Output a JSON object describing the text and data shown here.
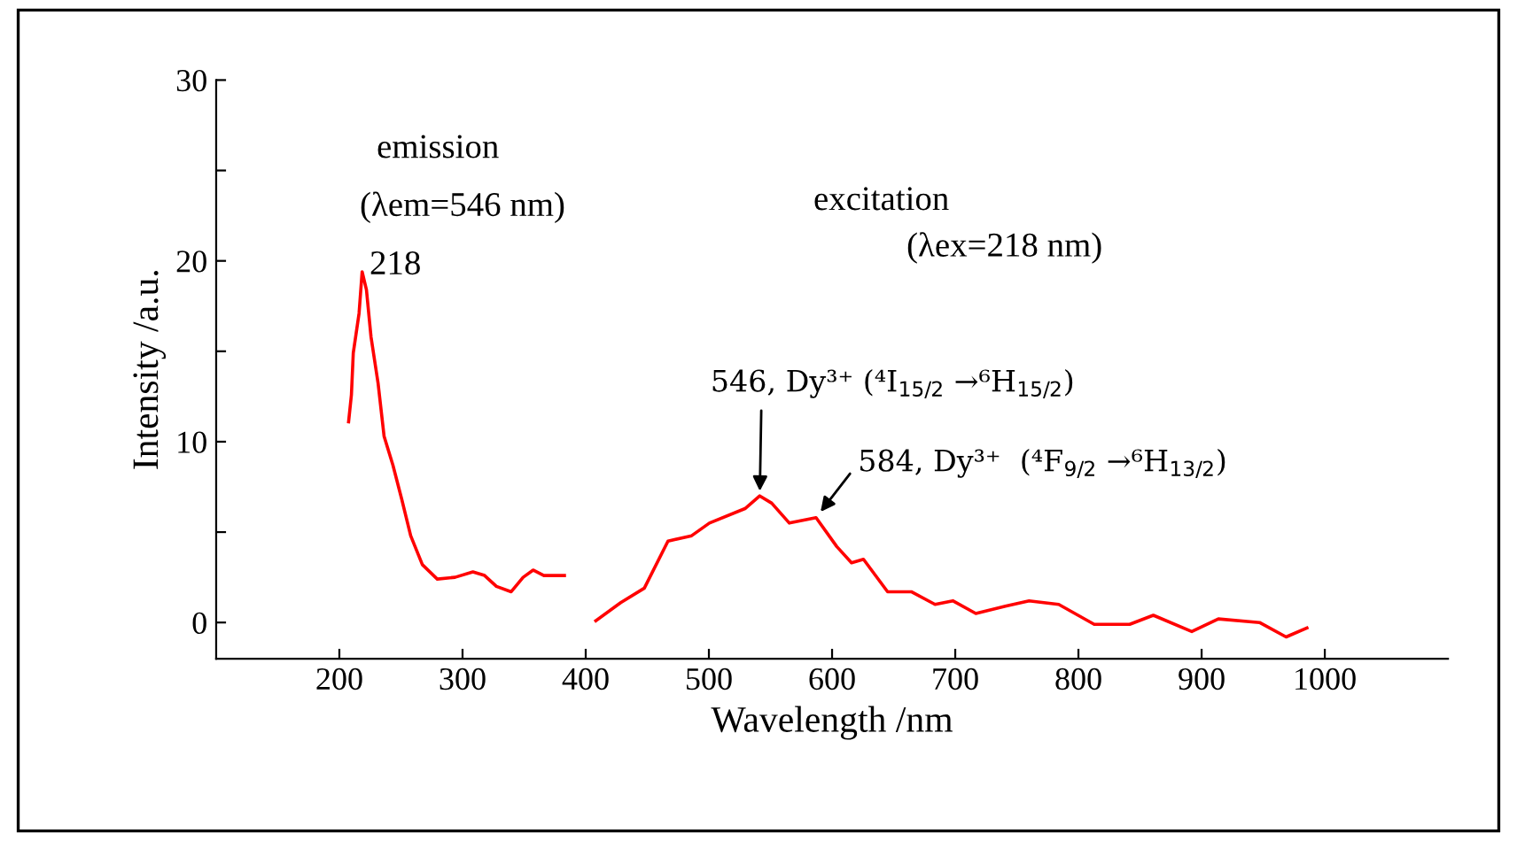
{
  "chart_data": {
    "type": "line",
    "xlabel": "Wavelength /nm",
    "ylabel": "Intensity /a.u.",
    "xlim": [
      100,
      1100
    ],
    "xticks": [
      200,
      300,
      400,
      500,
      600,
      700,
      800,
      900,
      1000
    ],
    "ylim": [
      -2,
      30
    ],
    "yticks": [
      0,
      {
        "value": 5,
        "label": null
      },
      10,
      {
        "value": 15,
        "label": null
      },
      20,
      {
        "value": 25,
        "label": null
      },
      30
    ],
    "grid": false,
    "legend": false,
    "marker": "none",
    "line_style": "solid",
    "series": [
      {
        "color": "#ff0000",
        "x": [
          207.5,
          209.8,
          211.3,
          216,
          218.5,
          222,
          225.7,
          231.5,
          236.3,
          243.5,
          250.7,
          257.9,
          267.4,
          279.5,
          293.9,
          308.4,
          317.9,
          327.5,
          339.5,
          349.2,
          357.3,
          366,
          382.7
        ],
        "values": [
          11.1,
          12.6,
          14.9,
          17.1,
          19.4,
          18.4,
          15.8,
          13.2,
          10.3,
          8.7,
          6.8,
          4.8,
          3.2,
          2.4,
          2.5,
          2.8,
          2.6,
          2.0,
          1.7,
          2.5,
          2.9,
          2.6,
          2.6
        ]
      },
      {
        "color": "#ff0000",
        "x": [
          408.2,
          428.4,
          447.6,
          466.8,
          486,
          500.4,
          529.3,
          541.3,
          551,
          565.3,
          587,
          603.8,
          615.8,
          625.5,
          645.1,
          664.3,
          683.6,
          698,
          716.7,
          740.7,
          759.9,
          784,
          812.8,
          841.6,
          860.8,
          892,
          913.6,
          947,
          968.6,
          985.5
        ],
        "values": [
          0.1,
          1.1,
          1.9,
          4.5,
          4.8,
          5.5,
          6.3,
          7.0,
          6.6,
          5.5,
          5.8,
          4.2,
          3.3,
          3.5,
          1.7,
          1.7,
          1.0,
          1.2,
          0.5,
          0.9,
          1.2,
          1.0,
          -0.1,
          -0.1,
          0.4,
          -0.5,
          0.2,
          0.0,
          -0.8,
          -0.3
        ]
      }
    ],
    "annotations": [
      "emission",
      "(λem=546 nm)",
      "excitation",
      "(λex=218 nm)",
      {
        "text": "218",
        "x": 218.5,
        "y": 19.4
      },
      {
        "text": "546, Dy³⁺ (⁴I$_{15/2}$ →⁶H$_{15/2}$)",
        "x": 541.3,
        "y": 7.0
      },
      {
        "text": "584, Dy³⁺  (⁴F$_{9/2}$ →⁶H$_{13/2}$)",
        "x": 587,
        "y": 5.8
      }
    ]
  }
}
